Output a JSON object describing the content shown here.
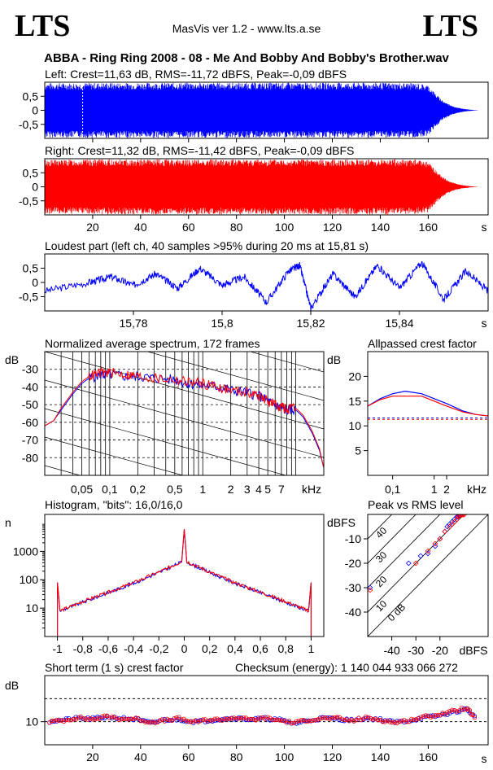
{
  "header": {
    "logo_left": "LTS",
    "logo_right": "LTS",
    "app_title": "MasVis ver 1.2 - www.lts.a.se",
    "file_title": "ABBA - Ring Ring 2008 - 08 - Me And Bobby And Bobby's Brother.wav"
  },
  "colors": {
    "left": "#0000ff",
    "right": "#ff0000",
    "axis": "#000000"
  },
  "chart_data": [
    {
      "id": "left-waveform",
      "type": "area",
      "title": "Left: Crest=11,63 dB, RMS=-11,72 dBFS, Peak=-0,09 dBFS",
      "ylim": [
        -1,
        1
      ],
      "yticks": [
        "0,5",
        "0",
        "-0,5"
      ],
      "xlim": [
        0,
        185
      ],
      "xticks": [
        "20",
        "40",
        "60",
        "80",
        "100",
        "120",
        "140",
        "160",
        "s"
      ],
      "envelope_x": [
        0,
        10,
        20,
        40,
        60,
        80,
        100,
        120,
        140,
        155,
        160,
        163,
        166,
        169,
        172,
        175,
        178,
        181
      ],
      "envelope_y": [
        0.97,
        0.97,
        0.98,
        0.98,
        0.98,
        0.98,
        0.98,
        0.98,
        0.98,
        0.97,
        0.9,
        0.6,
        0.35,
        0.2,
        0.1,
        0.05,
        0.02,
        0.0
      ],
      "marker_s": 15.81,
      "color": "#0000ff"
    },
    {
      "id": "right-waveform",
      "type": "area",
      "title": "Right: Crest=11,32 dB, RMS=-11,42 dBFS, Peak=-0,09 dBFS",
      "ylim": [
        -1,
        1
      ],
      "yticks": [
        "0,5",
        "0",
        "-0,5"
      ],
      "xlim": [
        0,
        185
      ],
      "xticks": [
        "20",
        "40",
        "60",
        "80",
        "100",
        "120",
        "140",
        "160",
        "s"
      ],
      "envelope_x": [
        0,
        10,
        20,
        40,
        60,
        80,
        100,
        120,
        140,
        155,
        160,
        163,
        166,
        169,
        172,
        175,
        178,
        181
      ],
      "envelope_y": [
        0.97,
        0.97,
        0.98,
        0.98,
        0.98,
        0.98,
        0.98,
        0.98,
        0.98,
        0.97,
        0.9,
        0.6,
        0.35,
        0.2,
        0.1,
        0.05,
        0.02,
        0.0
      ],
      "color": "#ff0000"
    },
    {
      "id": "loudest-part",
      "type": "line",
      "title": "Loudest part (left  ch, 40 samples >95% during 20 ms at 15,81 s)",
      "ylim": [
        -1,
        1
      ],
      "yticks": [
        "0,5",
        "0",
        "-0,5"
      ],
      "xlim": [
        15.76,
        15.86
      ],
      "xticks": [
        "15,78",
        "15,8",
        "15,82",
        "15,84",
        "s"
      ],
      "x": [
        15.76,
        15.77,
        15.775,
        15.78,
        15.785,
        15.79,
        15.795,
        15.8,
        15.805,
        15.81,
        15.815,
        15.8175,
        15.82,
        15.825,
        15.83,
        15.835,
        15.84,
        15.845,
        15.85,
        15.855,
        15.86
      ],
      "y": [
        -0.3,
        0.0,
        0.2,
        -0.1,
        0.3,
        -0.2,
        0.5,
        -0.1,
        0.2,
        -0.7,
        0.4,
        0.6,
        -0.9,
        0.3,
        -0.5,
        0.6,
        -0.2,
        0.7,
        -0.6,
        0.4,
        -0.3
      ],
      "color": "#0000ff"
    },
    {
      "id": "spectrum",
      "type": "line",
      "title": "Normalized average spectrum, 172 frames",
      "ylabel": "dB",
      "ylim": [
        -90,
        -20
      ],
      "yticks": [
        "-30",
        "-40",
        "-50",
        "-60",
        "-70",
        "-80"
      ],
      "xlim": [
        0.02,
        20
      ],
      "xticks": [
        "0,05",
        "0,1",
        "0,2",
        "0,5",
        "1",
        "2",
        "3",
        "4",
        "5",
        "7",
        "kHz"
      ],
      "x": [
        0.02,
        0.025,
        0.03,
        0.04,
        0.05,
        0.06,
        0.08,
        0.1,
        0.15,
        0.2,
        0.3,
        0.5,
        0.7,
        1,
        1.5,
        2,
        3,
        4,
        5,
        6,
        7,
        8,
        10,
        12,
        15,
        18,
        20
      ],
      "series": [
        {
          "name": "",
          "color": "#0000ff",
          "values": [
            -62,
            -59,
            -53,
            -44,
            -38,
            -35,
            -33,
            -33,
            -34,
            -34,
            -35,
            -36,
            -38,
            -39,
            -40,
            -42,
            -43,
            -45,
            -48,
            -50,
            -52,
            -53,
            -53,
            -57,
            -66,
            -76,
            -86
          ]
        },
        {
          "name": "",
          "color": "#ff0000",
          "values": [
            -62,
            -59,
            -52,
            -43,
            -37,
            -34,
            -32,
            -32,
            -33,
            -34,
            -35,
            -36,
            -37,
            -38,
            -40,
            -42,
            -43,
            -45,
            -48,
            -50,
            -51,
            -53,
            -52,
            -56,
            -65,
            -75,
            -86
          ]
        }
      ]
    },
    {
      "id": "allpassed-crest",
      "type": "line",
      "title": "Allpassed crest factor",
      "ylabel": "dB",
      "ylim": [
        0,
        25
      ],
      "yticks": [
        "20",
        "15",
        "10",
        "5"
      ],
      "xlim": [
        0.025,
        20
      ],
      "xticks": [
        "0,1",
        "1",
        "2",
        "kHz"
      ],
      "x": [
        0.025,
        0.05,
        0.1,
        0.2,
        0.5,
        1,
        2,
        5,
        10,
        20
      ],
      "series": [
        {
          "name": "",
          "color": "#0000ff",
          "values": [
            14.0,
            15.5,
            16.5,
            17.0,
            16.5,
            15.5,
            14.5,
            13.0,
            12.3,
            12.0
          ]
        },
        {
          "name": "",
          "color": "#ff0000",
          "values": [
            14.0,
            15.3,
            16.0,
            16.0,
            16.0,
            15.0,
            14.0,
            12.8,
            12.3,
            12.0
          ]
        }
      ],
      "ref_lines": [
        {
          "color": "#0000ff",
          "value": 11.6
        },
        {
          "color": "#ff0000",
          "value": 11.3
        }
      ]
    },
    {
      "id": "histogram",
      "type": "line",
      "title": "Histogram, \"bits\": 16,0/16,0",
      "ylabel": "n",
      "ylog": true,
      "ylim": [
        1,
        20000
      ],
      "yticks": [
        "1000",
        "100",
        "10"
      ],
      "xlim": [
        -1.1,
        1.1
      ],
      "xticks": [
        "-1",
        "-0,8",
        "-0,6",
        "-0,4",
        "-0,2",
        "0",
        "0,2",
        "0,4",
        "0,6",
        "0,8",
        "1"
      ],
      "x": [
        -1.0,
        -0.98,
        -0.8,
        -0.6,
        -0.4,
        -0.2,
        -0.02,
        0.0,
        0.02,
        0.2,
        0.4,
        0.6,
        0.8,
        0.98,
        1.0
      ],
      "series": [
        {
          "name": "",
          "color": "#0000ff",
          "values": [
            80,
            8,
            16,
            35,
            75,
            180,
            420,
            6000,
            420,
            180,
            75,
            35,
            16,
            8,
            80
          ]
        },
        {
          "name": "",
          "color": "#ff0000",
          "values": [
            80,
            8,
            17,
            36,
            78,
            185,
            440,
            6000,
            440,
            185,
            78,
            36,
            17,
            8,
            80
          ]
        }
      ]
    },
    {
      "id": "peak-vs-rms",
      "type": "scatter",
      "title": "Peak vs RMS level",
      "ylabel": "dBFS",
      "xlabel": "dBFS",
      "xlim": [
        -50,
        0
      ],
      "ylim": [
        -50,
        0
      ],
      "xticks": [
        "-40",
        "-30",
        "-20"
      ],
      "yticks": [
        "-10",
        "-20",
        "-30",
        "-40"
      ],
      "crest_labels": [
        "40",
        "30",
        "20",
        "10",
        "0 dB"
      ],
      "series": [
        {
          "name": "",
          "color": "#0000ff",
          "x": [
            -49,
            -33,
            -28,
            -25,
            -22,
            -20,
            -18,
            -17,
            -16,
            -15,
            -14,
            -13,
            -12.5,
            -12,
            -11.5,
            -11
          ],
          "y": [
            -30,
            -20,
            -17,
            -16,
            -13,
            -10,
            -7,
            -5,
            -4,
            -3,
            -2,
            -1,
            -0.6,
            -0.3,
            -0.2,
            -0.1
          ]
        },
        {
          "name": "",
          "color": "#ff0000",
          "x": [
            -49,
            -30,
            -25,
            -22,
            -20,
            -18,
            -16,
            -15,
            -14,
            -13,
            -12.5,
            -12,
            -11.5,
            -11,
            -10.5,
            -10
          ],
          "y": [
            -31,
            -20,
            -15,
            -12,
            -10,
            -7,
            -5,
            -4,
            -3,
            -2,
            -1,
            -0.6,
            -0.3,
            -0.2,
            -0.1,
            -0.1
          ]
        }
      ]
    },
    {
      "id": "short-term-crest",
      "type": "scatter",
      "title": "Short term (1 s) crest factor",
      "ylabel": "dB",
      "ylim": [
        0,
        30
      ],
      "yticks": [
        "10"
      ],
      "ref_lines_db": [
        10,
        20
      ],
      "xlim": [
        0,
        185
      ],
      "xticks": [
        "20",
        "40",
        "60",
        "80",
        "100",
        "120",
        "140",
        "160",
        "s"
      ],
      "x": [
        2,
        8,
        14,
        20,
        26,
        32,
        38,
        44,
        50,
        56,
        62,
        68,
        74,
        80,
        86,
        92,
        98,
        104,
        110,
        116,
        122,
        128,
        134,
        140,
        146,
        152,
        158,
        164,
        170,
        176,
        180
      ],
      "series": [
        {
          "name": "",
          "color": "#0000ff",
          "values": [
            10.2,
            10.8,
            11.5,
            11.3,
            12.0,
            11.5,
            11.0,
            9.5,
            10.8,
            11.0,
            10.0,
            10.5,
            11.2,
            11.6,
            11.0,
            11.4,
            10.8,
            9.2,
            10.5,
            11.6,
            11.2,
            10.6,
            11.5,
            11.0,
            9.8,
            10.4,
            11.8,
            12.5,
            14.0,
            15.5,
            11.5
          ]
        },
        {
          "name": "",
          "color": "#ff0000",
          "values": [
            10.0,
            10.6,
            11.8,
            11.0,
            12.3,
            11.2,
            11.3,
            9.8,
            10.5,
            11.4,
            9.8,
            10.8,
            11.0,
            11.8,
            10.8,
            11.6,
            10.6,
            9.5,
            10.8,
            11.4,
            11.5,
            10.4,
            11.7,
            10.8,
            9.6,
            10.6,
            12.0,
            13.0,
            14.5,
            16.0,
            11.0
          ]
        }
      ]
    }
  ],
  "checksum": "Checksum (energy):  1 140 044 933 066 272"
}
